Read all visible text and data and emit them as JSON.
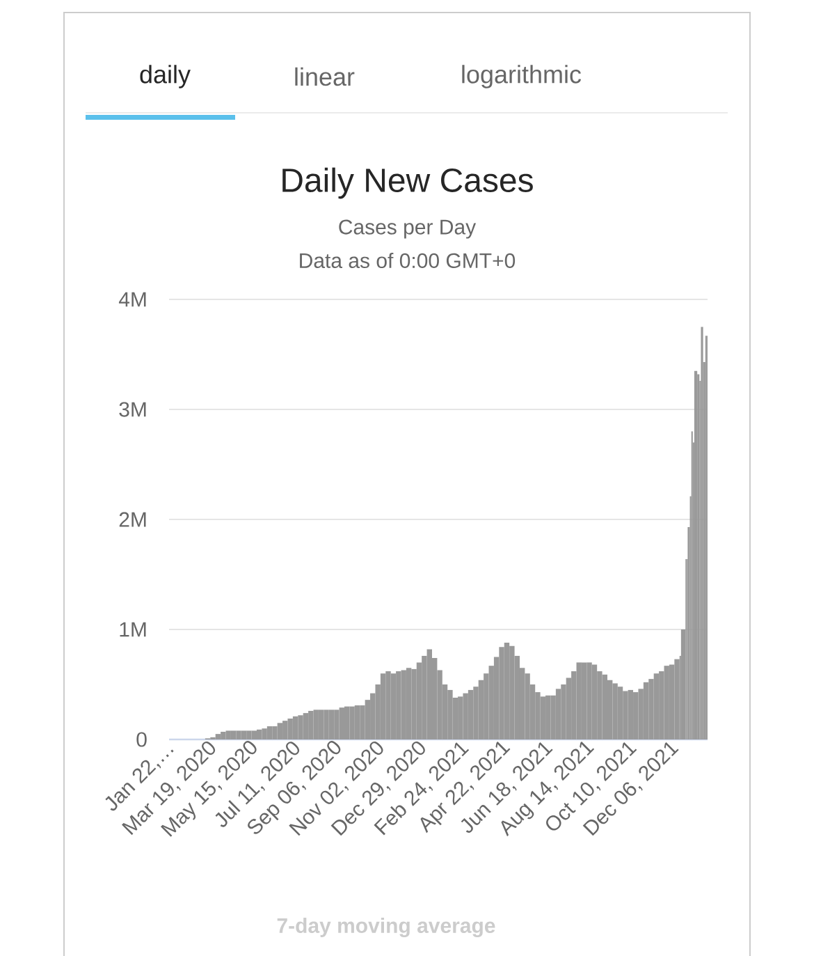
{
  "chart_data": {
    "type": "bar",
    "title": "Daily New Cases",
    "subtitle": "Cases per Day",
    "annotations": [
      "daily",
      "linear",
      "logarithmic",
      "Data as of 0:00 GMT+0",
      "7-day moving average"
    ],
    "x": [
      "2020-01-22",
      "2020-01-29",
      "2020-02-05",
      "2020-02-12",
      "2020-02-19",
      "2020-02-26",
      "2020-03-04",
      "2020-03-11",
      "2020-03-18",
      "2020-03-25",
      "2020-04-01",
      "2020-04-08",
      "2020-04-15",
      "2020-04-22",
      "2020-04-29",
      "2020-05-06",
      "2020-05-13",
      "2020-05-20",
      "2020-05-27",
      "2020-06-03",
      "2020-06-10",
      "2020-06-17",
      "2020-06-24",
      "2020-07-01",
      "2020-07-08",
      "2020-07-15",
      "2020-07-22",
      "2020-07-29",
      "2020-08-05",
      "2020-08-12",
      "2020-08-19",
      "2020-08-26",
      "2020-09-02",
      "2020-09-09",
      "2020-09-16",
      "2020-09-23",
      "2020-09-30",
      "2020-10-07",
      "2020-10-14",
      "2020-10-21",
      "2020-10-28",
      "2020-11-04",
      "2020-11-11",
      "2020-11-18",
      "2020-11-25",
      "2020-12-02",
      "2020-12-09",
      "2020-12-16",
      "2020-12-23",
      "2020-12-30",
      "2021-01-06",
      "2021-01-13",
      "2021-01-20",
      "2021-01-27",
      "2021-02-03",
      "2021-02-10",
      "2021-02-17",
      "2021-02-24",
      "2021-03-03",
      "2021-03-10",
      "2021-03-17",
      "2021-03-24",
      "2021-03-31",
      "2021-04-07",
      "2021-04-14",
      "2021-04-21",
      "2021-04-28",
      "2021-05-05",
      "2021-05-12",
      "2021-05-19",
      "2021-05-26",
      "2021-06-02",
      "2021-06-09",
      "2021-06-16",
      "2021-06-23",
      "2021-06-30",
      "2021-07-07",
      "2021-07-14",
      "2021-07-21",
      "2021-07-28",
      "2021-08-04",
      "2021-08-11",
      "2021-08-18",
      "2021-08-25",
      "2021-09-01",
      "2021-09-08",
      "2021-09-15",
      "2021-09-22",
      "2021-09-29",
      "2021-10-06",
      "2021-10-13",
      "2021-10-20",
      "2021-10-27",
      "2021-11-03",
      "2021-11-10",
      "2021-11-17",
      "2021-11-24",
      "2021-12-01",
      "2021-12-08",
      "2021-12-15",
      "2021-12-17",
      "2021-12-19",
      "2021-12-23",
      "2021-12-24",
      "2021-12-26",
      "2021-12-29",
      "2021-12-31",
      "2022-01-02",
      "2022-01-04",
      "2022-01-06",
      "2022-01-08",
      "2022-01-11",
      "2022-01-13",
      "2022-01-16",
      "2022-01-19",
      "2022-01-21"
    ],
    "values": [
      0,
      0,
      0,
      0,
      0,
      0,
      0,
      10000,
      20000,
      50000,
      70000,
      80000,
      80000,
      80000,
      80000,
      80000,
      80000,
      90000,
      100000,
      120000,
      120000,
      150000,
      170000,
      190000,
      210000,
      220000,
      240000,
      260000,
      270000,
      270000,
      270000,
      270000,
      270000,
      290000,
      300000,
      300000,
      310000,
      310000,
      360000,
      420000,
      500000,
      600000,
      620000,
      600000,
      620000,
      630000,
      650000,
      640000,
      700000,
      760000,
      820000,
      740000,
      630000,
      500000,
      450000,
      380000,
      390000,
      420000,
      450000,
      480000,
      540000,
      600000,
      670000,
      750000,
      840000,
      880000,
      850000,
      760000,
      650000,
      600000,
      500000,
      430000,
      390000,
      400000,
      400000,
      460000,
      500000,
      560000,
      620000,
      700000,
      700000,
      700000,
      680000,
      620000,
      590000,
      540000,
      510000,
      480000,
      440000,
      450000,
      430000,
      460000,
      520000,
      550000,
      600000,
      620000,
      670000,
      680000,
      730000,
      760000,
      1000000,
      1000000,
      1640000,
      1640000,
      1930000,
      2210000,
      2800000,
      2700000,
      3350000,
      3350000,
      3320000,
      3260000,
      3750000,
      3430000,
      3670000,
      3670000
    ],
    "color": "#999999",
    "xlim": [
      "2020-01-22",
      "2022-01-22"
    ],
    "xticks": [
      {
        "value": "2020-01-22",
        "label": "Jan 22,…"
      },
      {
        "value": "2020-03-19",
        "label": "Mar 19, 2020"
      },
      {
        "value": "2020-05-15",
        "label": "May 15, 2020"
      },
      {
        "value": "2020-07-11",
        "label": "Jul 11, 2020"
      },
      {
        "value": "2020-09-06",
        "label": "Sep 06, 2020"
      },
      {
        "value": "2020-11-02",
        "label": "Nov 02, 2020"
      },
      {
        "value": "2020-12-29",
        "label": "Dec 29, 2020"
      },
      {
        "value": "2021-02-24",
        "label": "Feb 24, 2021"
      },
      {
        "value": "2021-04-22",
        "label": "Apr 22, 2021"
      },
      {
        "value": "2021-06-18",
        "label": "Jun 18, 2021"
      },
      {
        "value": "2021-08-14",
        "label": "Aug 14, 2021"
      },
      {
        "value": "2021-10-10",
        "label": "Oct 10, 2021"
      },
      {
        "value": "2021-12-06",
        "label": "Dec 06, 2021"
      }
    ],
    "ylim": [
      0,
      4000000
    ],
    "yticks": [
      0,
      {
        "value": 1000000,
        "label": "1M"
      },
      {
        "value": 2000000,
        "label": "2M"
      },
      {
        "value": 3000000,
        "label": "3M"
      },
      {
        "value": 4000000,
        "label": "4M"
      }
    ],
    "grid": "y"
  }
}
